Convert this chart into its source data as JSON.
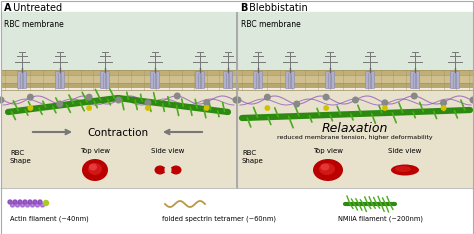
{
  "fig_width": 4.74,
  "fig_height": 2.34,
  "dpi": 100,
  "panel_a_title_bold": "A",
  "panel_a_title_rest": " Untreated",
  "panel_b_title_bold": "B",
  "panel_b_title_rest": " Blebbistatin",
  "rbc_membrane_text": "RBC membrane",
  "contraction_text": "Contraction",
  "relaxation_text": "Relaxation",
  "relaxation_sub": "reduced membrane tension, higher deformability",
  "rbc_shape_text": "RBC\nShape",
  "top_view_text": "Top view",
  "side_view_text": "Side view",
  "legend1": "Actin filament (~40nm)",
  "legend2": "folded spectrin tetramer (~60nm)",
  "legend3": "NMIIA filament (~200nm)",
  "green_dark": "#2d8a10",
  "green_mid": "#4aaa20",
  "green_light": "#6abf35",
  "rbc_red_dark": "#bb0000",
  "rbc_red_bright": "#ee3333",
  "mem_tan1": "#c8ba90",
  "mem_tan2": "#b8aa80",
  "mem_tan3": "#a89870",
  "extracell_bg": "#ddeedd",
  "cytoplasm_bg": "#e8e2cc",
  "panel_bg": "#eeebe0",
  "spectrin_purple": "#9966bb",
  "spectrin_blue": "#7788bb",
  "bead_gray": "#888888",
  "bead_yellow": "#d4c000",
  "prot_blue": "#aaaacc",
  "arrow_gray": "#777777",
  "white": "#ffffff"
}
